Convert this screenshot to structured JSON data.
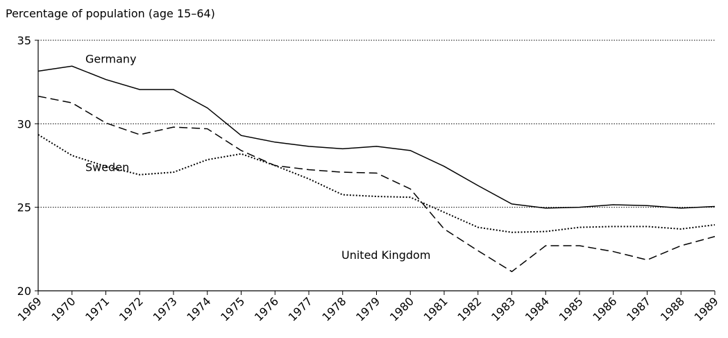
{
  "chart_data": {
    "type": "line",
    "y_label": "Percentage of population (age 15–64)",
    "categories": [
      "1969",
      "1970",
      "1971",
      "1972",
      "1973",
      "1974",
      "1975",
      "1976",
      "1977",
      "1978",
      "1979",
      "1980",
      "1981",
      "1982",
      "1983",
      "1984",
      "1985",
      "1986",
      "1987",
      "1988",
      "1989"
    ],
    "series": [
      {
        "name": "Germany",
        "color": "#000000",
        "style": "solid",
        "values": [
          33.15,
          33.45,
          32.65,
          32.05,
          32.05,
          30.95,
          29.3,
          28.9,
          28.65,
          28.5,
          28.65,
          28.4,
          27.45,
          26.3,
          25.2,
          24.95,
          25.0,
          25.15,
          25.1,
          24.95,
          25.05
        ]
      },
      {
        "name": "United Kingdom",
        "color": "#000000",
        "style": "dashed",
        "values": [
          31.65,
          31.25,
          30.05,
          29.35,
          29.8,
          29.7,
          28.4,
          27.5,
          27.25,
          27.1,
          27.05,
          26.1,
          23.7,
          22.4,
          21.15,
          22.7,
          22.7,
          22.35,
          21.85,
          22.7,
          23.25
        ]
      },
      {
        "name": "Sweden",
        "color": "#000000",
        "style": "dotted",
        "values": [
          29.35,
          28.1,
          27.45,
          26.95,
          27.1,
          27.85,
          28.2,
          27.5,
          26.7,
          25.75,
          25.65,
          25.6,
          24.7,
          23.8,
          23.5,
          23.55,
          23.8,
          23.85,
          23.85,
          23.7,
          23.95
        ]
      }
    ],
    "ylim": [
      20,
      35
    ],
    "yticks": [
      20,
      25,
      30,
      35
    ],
    "grid": true
  }
}
